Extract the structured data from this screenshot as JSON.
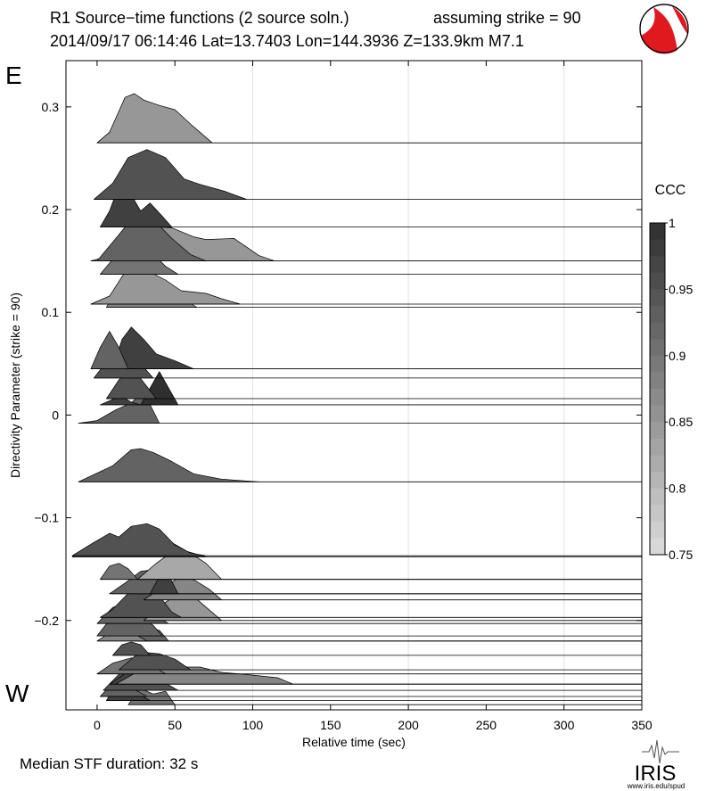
{
  "header": {
    "title": "R1 Source−time functions (2 source soln.)",
    "strike_note": "assuming strike = 90",
    "event_line": "2014/09/17 06:14:46  Lat=13.7403 Lon=144.3936  Z=133.9km  M7.1"
  },
  "side_labels": {
    "east": "E",
    "west": "W"
  },
  "footer": {
    "median": "Median STF duration: 32 s",
    "logo_text": "IRIS",
    "logo_url": "www.iris.edu/spud"
  },
  "colorbar": {
    "title": "CCC",
    "ticks": [
      "1",
      "0.95",
      "0.9",
      "0.85",
      "0.8",
      "0.75"
    ],
    "range": [
      0.75,
      1.0
    ],
    "colors": {
      "low": "#dcdcdc",
      "high": "#2f2f2f"
    }
  },
  "chart_data": {
    "type": "area",
    "xlabel": "Relative time (sec)",
    "ylabel": "Directivity Parameter (strike = 90)",
    "xlim": [
      -20,
      350
    ],
    "ylim": [
      -0.287,
      0.345
    ],
    "x_ticks": [
      "0",
      "50",
      "100",
      "150",
      "200",
      "250",
      "300",
      "350"
    ],
    "y_ticks": [
      "0.3",
      "0.2",
      "0.1",
      "0",
      "−0.1",
      "−0.2"
    ],
    "gridlines_x": [
      100,
      200,
      300
    ],
    "traces": [
      {
        "p": 0.265,
        "ccc": 0.85,
        "shape": [
          [
            0,
            0
          ],
          [
            8,
            0.2
          ],
          [
            18,
            0.85
          ],
          [
            24,
            0.92
          ],
          [
            30,
            0.8
          ],
          [
            40,
            0.7
          ],
          [
            50,
            0.62
          ],
          [
            62,
            0.3
          ],
          [
            74,
            0
          ]
        ]
      },
      {
        "p": 0.21,
        "ccc": 0.95,
        "shape": [
          [
            -2,
            0
          ],
          [
            10,
            0.3
          ],
          [
            20,
            0.78
          ],
          [
            32,
            0.93
          ],
          [
            44,
            0.78
          ],
          [
            56,
            0.38
          ],
          [
            66,
            0.28
          ],
          [
            82,
            0.15
          ],
          [
            96,
            0
          ]
        ]
      },
      {
        "p": 0.183,
        "ccc": 0.975,
        "shape": [
          [
            2,
            0
          ],
          [
            8,
            0.3
          ],
          [
            15,
            0.85
          ],
          [
            20,
            0.7
          ],
          [
            28,
            0.3
          ],
          [
            34,
            0.45
          ],
          [
            42,
            0.2
          ],
          [
            48,
            0
          ]
        ]
      },
      {
        "p": 0.15,
        "ccc": 0.85,
        "shape": [
          [
            -4,
            0
          ],
          [
            6,
            0.08
          ],
          [
            16,
            0.5
          ],
          [
            22,
            0.7
          ],
          [
            30,
            0.65
          ],
          [
            48,
            0.62
          ],
          [
            62,
            0.45
          ],
          [
            70,
            0.4
          ],
          [
            88,
            0.42
          ],
          [
            104,
            0.1
          ],
          [
            114,
            0
          ]
        ]
      },
      {
        "p": 0.15,
        "ccc": 0.925,
        "shape": [
          [
            0,
            0
          ],
          [
            12,
            0.42
          ],
          [
            26,
            0.92
          ],
          [
            36,
            0.78
          ],
          [
            48,
            0.42
          ],
          [
            60,
            0.12
          ],
          [
            70,
            0
          ]
        ]
      },
      {
        "p": 0.137,
        "ccc": 0.9,
        "shape": [
          [
            2,
            0
          ],
          [
            12,
            0.35
          ],
          [
            20,
            0.65
          ],
          [
            26,
            0.6
          ],
          [
            36,
            0.38
          ],
          [
            44,
            0.15
          ],
          [
            52,
            0
          ]
        ]
      },
      {
        "p": 0.108,
        "ccc": 0.85,
        "shape": [
          [
            -4,
            0
          ],
          [
            8,
            0.15
          ],
          [
            18,
            0.6
          ],
          [
            30,
            0.66
          ],
          [
            44,
            0.45
          ],
          [
            54,
            0.25
          ],
          [
            70,
            0.2
          ],
          [
            80,
            0.1
          ],
          [
            92,
            0
          ]
        ]
      },
      {
        "p": 0.105,
        "ccc": 0.875,
        "shape": [
          [
            6,
            0
          ],
          [
            12,
            0.3
          ],
          [
            20,
            0.75
          ],
          [
            30,
            0.55
          ],
          [
            42,
            0.35
          ],
          [
            56,
            0.15
          ],
          [
            64,
            0
          ]
        ]
      },
      {
        "p": 0.045,
        "ccc": 0.975,
        "shape": [
          [
            10,
            0
          ],
          [
            16,
            0.55
          ],
          [
            22,
            0.78
          ],
          [
            30,
            0.55
          ],
          [
            38,
            0.28
          ],
          [
            50,
            0.15
          ],
          [
            62,
            0
          ]
        ]
      },
      {
        "p": 0.045,
        "ccc": 0.925,
        "shape": [
          [
            -4,
            0
          ],
          [
            2,
            0.4
          ],
          [
            8,
            0.7
          ],
          [
            14,
            0.4
          ],
          [
            20,
            0
          ]
        ]
      },
      {
        "p": 0.036,
        "ccc": 0.95,
        "shape": [
          [
            -2,
            0
          ],
          [
            6,
            0.3
          ],
          [
            14,
            0.55
          ],
          [
            22,
            0.45
          ],
          [
            30,
            0.2
          ],
          [
            36,
            0
          ]
        ]
      },
      {
        "p": 0.016,
        "ccc": 0.95,
        "shape": [
          [
            6,
            0
          ],
          [
            14,
            0.35
          ],
          [
            22,
            0.6
          ],
          [
            30,
            0.3
          ],
          [
            38,
            0
          ]
        ]
      },
      {
        "p": 0.01,
        "ccc": 1.0,
        "shape": [
          [
            28,
            0
          ],
          [
            40,
            0.62
          ],
          [
            52,
            0
          ]
        ]
      },
      {
        "p": 0.01,
        "ccc": 0.975,
        "shape": [
          [
            2,
            0
          ],
          [
            10,
            0.1
          ],
          [
            16,
            0.15
          ],
          [
            22,
            0.05
          ],
          [
            28,
            0
          ]
        ]
      },
      {
        "p": -0.008,
        "ccc": 0.925,
        "shape": [
          [
            -12,
            0
          ],
          [
            0,
            0.05
          ],
          [
            12,
            0.25
          ],
          [
            22,
            0.38
          ],
          [
            28,
            0.55
          ],
          [
            34,
            0.35
          ],
          [
            40,
            0
          ]
        ]
      },
      {
        "p": -0.065,
        "ccc": 0.925,
        "shape": [
          [
            -12,
            0
          ],
          [
            10,
            0.3
          ],
          [
            22,
            0.6
          ],
          [
            28,
            0.62
          ],
          [
            36,
            0.55
          ],
          [
            48,
            0.38
          ],
          [
            62,
            0.15
          ],
          [
            80,
            0.05
          ],
          [
            104,
            0
          ]
        ]
      },
      {
        "p": -0.137,
        "ccc": 0.95,
        "shape": [
          [
            -16,
            0
          ],
          [
            -2,
            0.25
          ],
          [
            8,
            0.42
          ],
          [
            14,
            0.35
          ],
          [
            22,
            0.55
          ],
          [
            32,
            0.6
          ],
          [
            40,
            0.5
          ],
          [
            50,
            0.2
          ],
          [
            60,
            0.05
          ],
          [
            70,
            0
          ]
        ]
      },
      {
        "p": -0.138,
        "ccc": 0.925,
        "shape": [
          [
            -16,
            0
          ],
          [
            -4,
            0.2
          ],
          [
            6,
            0.3
          ],
          [
            12,
            0.2
          ],
          [
            18,
            0.38
          ],
          [
            26,
            0.42
          ],
          [
            32,
            0.4
          ],
          [
            46,
            0.3
          ],
          [
            58,
            0.1
          ],
          [
            70,
            0
          ]
        ]
      },
      {
        "p": -0.16,
        "ccc": 0.825,
        "shape": [
          [
            26,
            0
          ],
          [
            38,
            0.3
          ],
          [
            50,
            0.55
          ],
          [
            62,
            0.45
          ],
          [
            70,
            0.3
          ],
          [
            80,
            0
          ]
        ]
      },
      {
        "p": -0.16,
        "ccc": 0.9,
        "shape": [
          [
            2,
            0
          ],
          [
            8,
            0.25
          ],
          [
            14,
            0.3
          ],
          [
            20,
            0.2
          ],
          [
            26,
            0
          ]
        ]
      },
      {
        "p": -0.174,
        "ccc": 0.925,
        "shape": [
          [
            8,
            0
          ],
          [
            18,
            0.2
          ],
          [
            28,
            0.42
          ],
          [
            36,
            0.45
          ],
          [
            46,
            0.3
          ],
          [
            52,
            0
          ]
        ]
      },
      {
        "p": -0.174,
        "ccc": 0.975,
        "shape": [
          [
            34,
            0
          ],
          [
            40,
            0.32
          ],
          [
            46,
            0.35
          ],
          [
            52,
            0
          ]
        ]
      },
      {
        "p": -0.18,
        "ccc": 0.875,
        "shape": [
          [
            30,
            0
          ],
          [
            40,
            0.2
          ],
          [
            52,
            0.4
          ],
          [
            62,
            0.38
          ],
          [
            72,
            0.2
          ],
          [
            80,
            0
          ]
        ]
      },
      {
        "p": -0.197,
        "ccc": 0.95,
        "shape": [
          [
            2,
            0
          ],
          [
            10,
            0.15
          ],
          [
            20,
            0.45
          ],
          [
            30,
            0.55
          ],
          [
            40,
            0.4
          ],
          [
            48,
            0.1
          ],
          [
            54,
            0
          ]
        ]
      },
      {
        "p": -0.2,
        "ccc": 0.85,
        "shape": [
          [
            30,
            0
          ],
          [
            42,
            0.3
          ],
          [
            52,
            0.5
          ],
          [
            64,
            0.4
          ],
          [
            74,
            0.15
          ],
          [
            80,
            0
          ]
        ]
      },
      {
        "p": -0.203,
        "ccc": 0.925,
        "shape": [
          [
            0,
            0
          ],
          [
            10,
            0.3
          ],
          [
            22,
            0.42
          ],
          [
            30,
            0.3
          ],
          [
            40,
            0.1
          ],
          [
            46,
            0
          ]
        ]
      },
      {
        "p": -0.215,
        "ccc": 0.925,
        "shape": [
          [
            0,
            0
          ],
          [
            8,
            0.3
          ],
          [
            16,
            0.4
          ],
          [
            26,
            0.35
          ],
          [
            36,
            0.2
          ],
          [
            42,
            0
          ]
        ]
      },
      {
        "p": -0.22,
        "ccc": 0.925,
        "shape": [
          [
            24,
            0
          ],
          [
            32,
            0.25
          ],
          [
            40,
            0.2
          ],
          [
            46,
            0
          ]
        ]
      },
      {
        "p": -0.22,
        "ccc": 0.875,
        "shape": [
          [
            0,
            0
          ],
          [
            8,
            0.15
          ],
          [
            18,
            0.18
          ],
          [
            26,
            0.1
          ],
          [
            32,
            0
          ]
        ]
      },
      {
        "p": -0.234,
        "ccc": 0.95,
        "shape": [
          [
            10,
            0
          ],
          [
            16,
            0.2
          ],
          [
            22,
            0.25
          ],
          [
            28,
            0.2
          ],
          [
            34,
            0
          ]
        ]
      },
      {
        "p": -0.248,
        "ccc": 0.95,
        "shape": [
          [
            14,
            0
          ],
          [
            24,
            0.25
          ],
          [
            32,
            0.32
          ],
          [
            40,
            0.3
          ],
          [
            50,
            0.2
          ],
          [
            60,
            0
          ]
        ]
      },
      {
        "p": -0.252,
        "ccc": 0.9,
        "shape": [
          [
            0,
            0
          ],
          [
            10,
            0.2
          ],
          [
            22,
            0.3
          ],
          [
            32,
            0.22
          ],
          [
            44,
            0
          ]
        ]
      },
      {
        "p": -0.262,
        "ccc": 0.975,
        "shape": [
          [
            8,
            0
          ],
          [
            18,
            0.2
          ],
          [
            28,
            0.35
          ],
          [
            40,
            0.45
          ],
          [
            52,
            0.35
          ],
          [
            62,
            0.15
          ],
          [
            74,
            0
          ]
        ]
      },
      {
        "p": -0.262,
        "ccc": 0.875,
        "shape": [
          [
            12,
            0
          ],
          [
            30,
            0.3
          ],
          [
            50,
            0.32
          ],
          [
            66,
            0.32
          ],
          [
            80,
            0.22
          ],
          [
            96,
            0.18
          ],
          [
            116,
            0.12
          ],
          [
            126,
            0
          ]
        ]
      },
      {
        "p": -0.268,
        "ccc": 0.95,
        "shape": [
          [
            4,
            0
          ],
          [
            14,
            0.3
          ],
          [
            24,
            0.42
          ],
          [
            36,
            0.35
          ],
          [
            46,
            0.1
          ],
          [
            52,
            0
          ]
        ]
      },
      {
        "p": -0.274,
        "ccc": 0.925,
        "shape": [
          [
            2,
            0
          ],
          [
            10,
            0.25
          ],
          [
            18,
            0.2
          ],
          [
            26,
            0.1
          ],
          [
            32,
            0
          ]
        ]
      },
      {
        "p": -0.278,
        "ccc": 0.975,
        "shape": [
          [
            6,
            0
          ],
          [
            12,
            0.3
          ],
          [
            16,
            0.38
          ],
          [
            22,
            0.32
          ],
          [
            28,
            0.1
          ],
          [
            34,
            0
          ]
        ]
      },
      {
        "p": -0.282,
        "ccc": 0.9,
        "shape": [
          [
            20,
            0
          ],
          [
            28,
            0.3
          ],
          [
            36,
            0.2
          ],
          [
            44,
            0.25
          ],
          [
            50,
            0
          ]
        ]
      }
    ]
  }
}
